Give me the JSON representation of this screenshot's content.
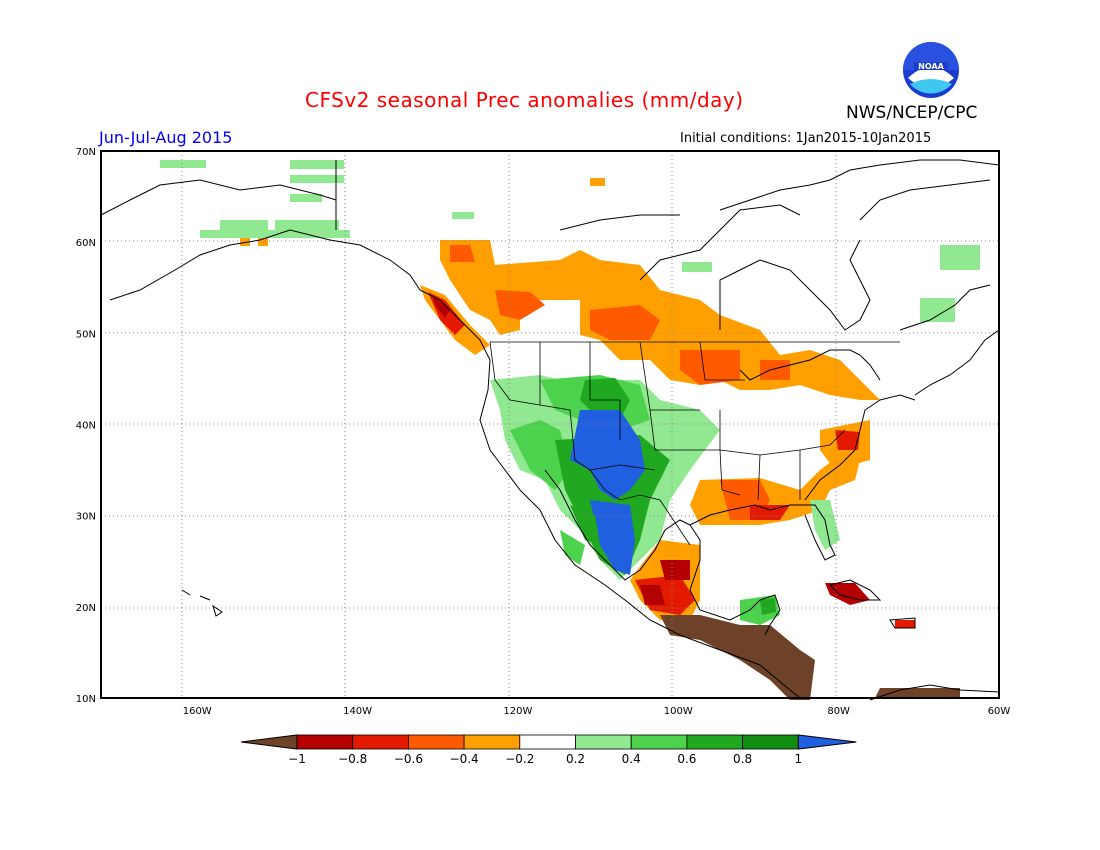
{
  "header": {
    "title": "CFSv2 seasonal Prec anomalies (mm/day)",
    "agency": "NWS/NCEP/CPC",
    "season": "Jun-Jul-Aug 2015",
    "initial_conditions": "Initial conditions: 1Jan2015-10Jan2015"
  },
  "map": {
    "lat_labels": [
      "70N",
      "60N",
      "50N",
      "40N",
      "30N",
      "20N",
      "10N"
    ],
    "lon_labels": [
      "160W",
      "140W",
      "120W",
      "100W",
      "80W",
      "60W"
    ],
    "lat_range": [
      10,
      70
    ],
    "lon_range": [
      -172,
      -60
    ]
  },
  "legend": {
    "labels": [
      "-1",
      "-0.8",
      "-0.6",
      "-0.4",
      "-0.2",
      "0.2",
      "0.4",
      "0.6",
      "0.8",
      "1"
    ],
    "colors": [
      "#6e4228",
      "#b40000",
      "#e41a00",
      "#ff5a00",
      "#ff9f00",
      "#ffffff",
      "#90e890",
      "#4cd24c",
      "#20a820",
      "#108c10",
      "#2060e0"
    ]
  },
  "colors": {
    "dry_extreme": "#6e4228",
    "dry_strong": "#b40000",
    "dry": "#e41a00",
    "dry_mod": "#ff5a00",
    "dry_weak": "#ff9f00",
    "wet_weak": "#90e890",
    "wet_mod": "#4cd24c",
    "wet": "#20a820",
    "wet_strong": "#108c10",
    "wet_extreme": "#2060e0"
  }
}
